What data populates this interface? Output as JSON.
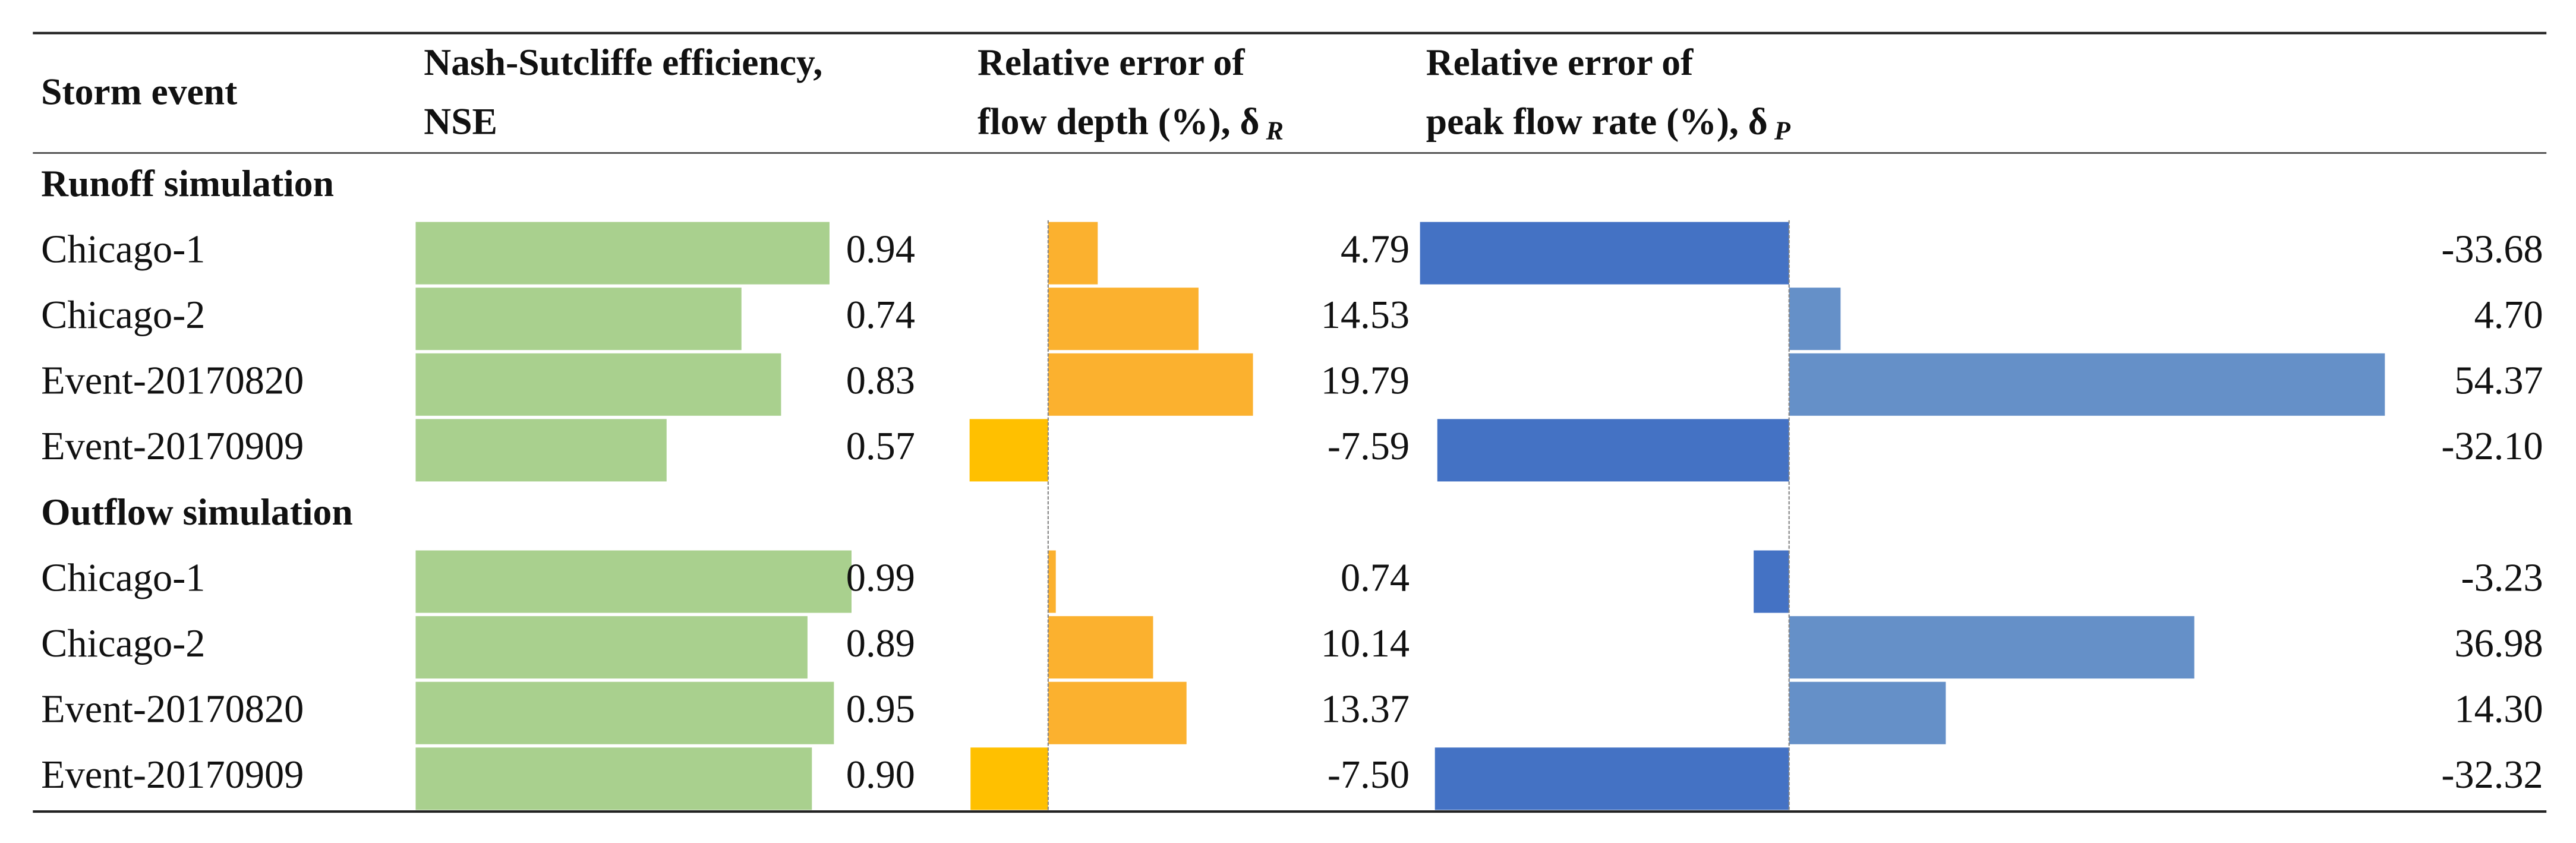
{
  "table": {
    "columns": [
      {
        "lines": [
          "Storm event"
        ]
      },
      {
        "lines": [
          "Nash-Sutcliffe efficiency,",
          "NSE"
        ]
      },
      {
        "lines": [
          "Relative error of",
          "flow depth (%), δ"
        ],
        "subscript": "R"
      },
      {
        "lines": [
          "Relative error of",
          "peak flow rate (%), δ"
        ],
        "subscript": "P"
      }
    ],
    "sections": [
      {
        "title": "Runoff simulation",
        "rows": [
          [
            "Chicago-1",
            "0.94",
            "4.79",
            "-33.68"
          ],
          [
            "Chicago-2",
            "0.74",
            "14.53",
            "4.70"
          ],
          [
            "Event-20170820",
            "0.83",
            "19.79",
            "54.37"
          ],
          [
            "Event-20170909",
            "0.57",
            "-7.59",
            "-32.10"
          ]
        ]
      },
      {
        "title": "Outflow simulation",
        "rows": [
          [
            "Chicago-1",
            "0.99",
            "0.74",
            "-3.23"
          ],
          [
            "Chicago-2",
            "0.89",
            "10.14",
            "36.98"
          ],
          [
            "Event-20170820",
            "0.95",
            "13.37",
            "14.30"
          ],
          [
            "Event-20170909",
            "0.90",
            "-7.50",
            "-32.32"
          ]
        ]
      }
    ]
  }
}
